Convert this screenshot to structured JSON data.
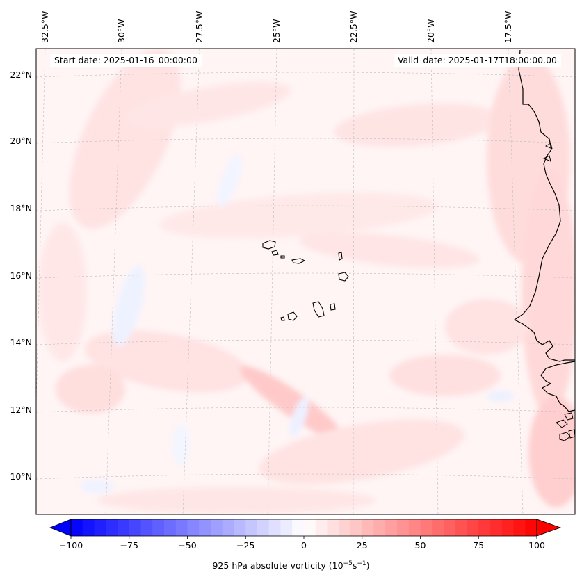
{
  "map": {
    "region": "Eastern tropical North Atlantic with Cape Verde islands and West African coast",
    "start_date": "Start date: 2025-01-16_00:00:00",
    "valid_date": "Valid_date: 2025-01-17T18:00:00.00",
    "lon_labels": [
      "32.5°W",
      "30°W",
      "27.5°W",
      "25°W",
      "22.5°W",
      "20°W",
      "17.5°W"
    ],
    "lat_labels": [
      "22°N",
      "20°N",
      "18°N",
      "16°N",
      "14°N",
      "12°N",
      "10°N"
    ],
    "colors": {
      "negative": "#0000ff",
      "neutral": "#ffffff",
      "positive": "#ff0000",
      "coast": "#000000",
      "grid": "#bbbbbb"
    }
  },
  "colorbar": {
    "label_prefix": "925 hPa absolute vorticity (10",
    "label_exp1": "−5",
    "label_mid": "s",
    "label_exp2": "−1",
    "label_suffix": ")",
    "min": -100,
    "max": 100,
    "levels": 40,
    "ticks": [
      "−100",
      "−75",
      "−50",
      "−25",
      "0",
      "25",
      "50",
      "75",
      "100"
    ]
  }
}
